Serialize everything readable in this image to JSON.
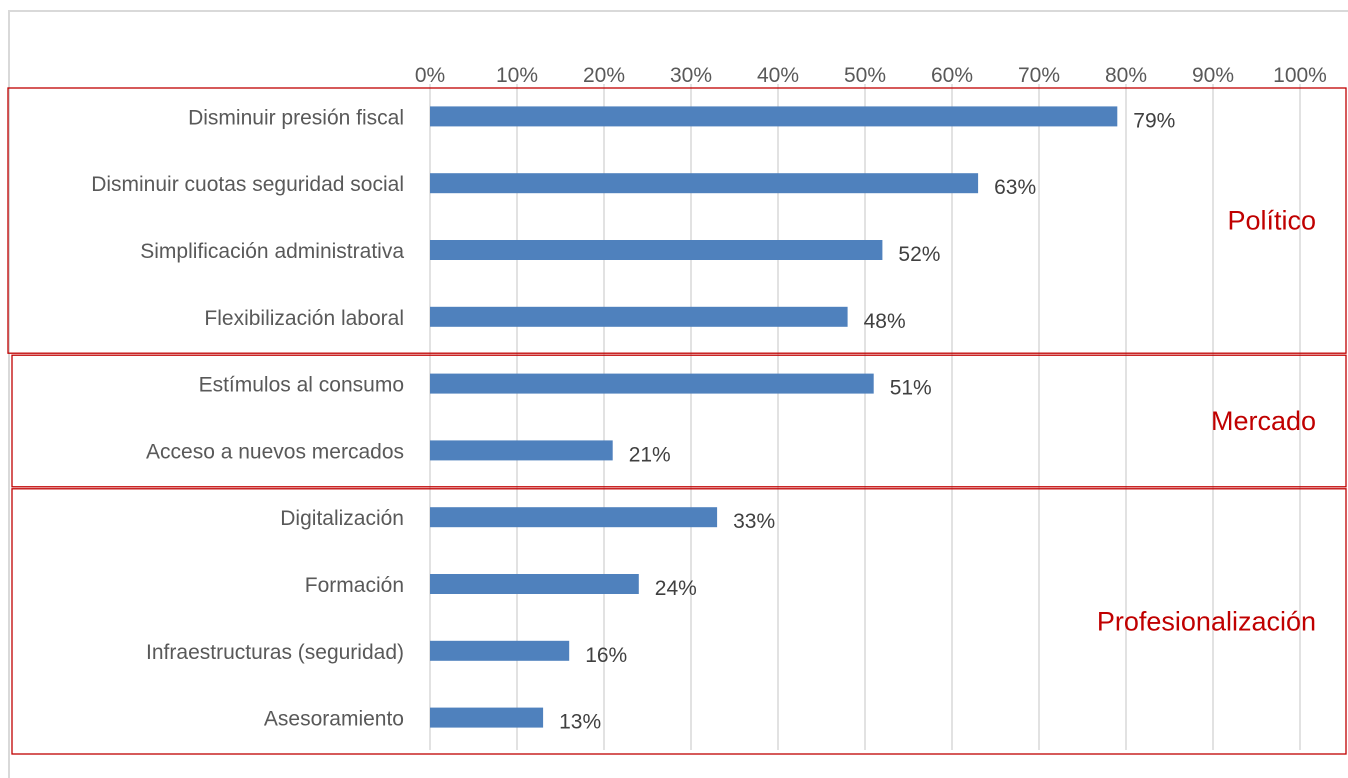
{
  "chart_data": {
    "type": "bar",
    "orientation": "horizontal",
    "xlim": [
      0,
      100
    ],
    "x_ticks": [
      "0%",
      "10%",
      "20%",
      "30%",
      "40%",
      "50%",
      "60%",
      "70%",
      "80%",
      "90%",
      "100%"
    ],
    "x_tick_values": [
      0,
      10,
      20,
      30,
      40,
      50,
      60,
      70,
      80,
      90,
      100
    ],
    "grid": true,
    "bar_color": "#4f81bd",
    "group_color": "#c00000",
    "categories": [
      "Disminuir presión fiscal",
      "Disminuir cuotas seguridad social",
      "Simplificación administrativa",
      "Flexibilización laboral",
      "Estímulos al consumo",
      "Acceso a nuevos mercados",
      "Digitalización",
      "Formación",
      "Infraestructuras (seguridad)",
      "Asesoramiento"
    ],
    "values": [
      79,
      63,
      52,
      48,
      51,
      21,
      33,
      24,
      16,
      13
    ],
    "value_labels": [
      "79%",
      "63%",
      "52%",
      "48%",
      "51%",
      "21%",
      "33%",
      "24%",
      "16%",
      "13%"
    ],
    "groups": [
      {
        "name": "Político",
        "count": 4
      },
      {
        "name": "Mercado",
        "count": 2
      },
      {
        "name": "Profesionalización",
        "count": 4
      }
    ]
  }
}
